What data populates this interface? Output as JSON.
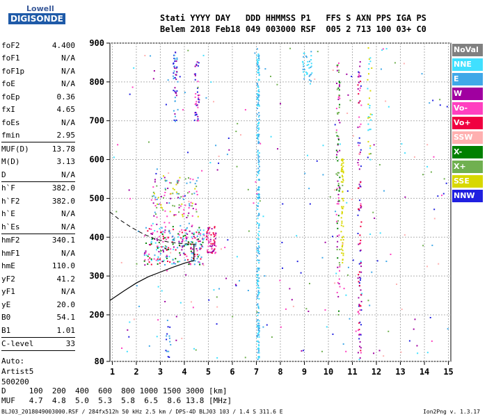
{
  "logo": {
    "top": "Lowell",
    "bottom": "DIGISONDE"
  },
  "header": {
    "line1": "Stati YYYY DAY   DDD HHMMSS P1   FFS S AXN PPS IGA PS",
    "line2": "Belem 2018 Feb18 049 003000 RSF  005 2 713 100 03+ C0"
  },
  "params": {
    "group1": [
      {
        "name": "foF2",
        "value": "4.400"
      },
      {
        "name": "foF1",
        "value": "N/A"
      },
      {
        "name": "foF1p",
        "value": "N/A"
      },
      {
        "name": "foE",
        "value": "N/A"
      },
      {
        "name": "foEp",
        "value": "0.36"
      },
      {
        "name": "fxI",
        "value": "4.65"
      },
      {
        "name": "foEs",
        "value": "N/A"
      },
      {
        "name": "fmin",
        "value": "2.95"
      }
    ],
    "group2": [
      {
        "name": "MUF(D)",
        "value": "13.78"
      },
      {
        "name": "M(D)",
        "value": "3.13"
      },
      {
        "name": "D",
        "value": "N/A"
      }
    ],
    "group3": [
      {
        "name": "h`F",
        "value": "382.0"
      },
      {
        "name": "h`F2",
        "value": "382.0"
      },
      {
        "name": "h`E",
        "value": "N/A"
      },
      {
        "name": "h`Es",
        "value": "N/A"
      }
    ],
    "group4": [
      {
        "name": "hmF2",
        "value": "340.1"
      },
      {
        "name": "hmF1",
        "value": "N/A"
      },
      {
        "name": "hmE",
        "value": "110.0"
      },
      {
        "name": "yF2",
        "value": "41.2"
      },
      {
        "name": "yF1",
        "value": "N/A"
      },
      {
        "name": "yE",
        "value": "20.0"
      },
      {
        "name": "B0",
        "value": "54.1"
      },
      {
        "name": "B1",
        "value": "1.01"
      }
    ],
    "clevel": {
      "name": "C-level",
      "value": "33"
    },
    "auto": [
      "Auto:",
      "Artist5",
      "500200"
    ]
  },
  "legend": [
    {
      "label": "NoVal",
      "color": "#808080"
    },
    {
      "label": "NNE",
      "color": "#40e0ff"
    },
    {
      "label": "E",
      "color": "#40a8e8"
    },
    {
      "label": "W",
      "color": "#a000a0"
    },
    {
      "label": "Vo-",
      "color": "#ff40c0"
    },
    {
      "label": "Vo+",
      "color": "#f00040"
    },
    {
      "label": "SSW",
      "color": "#ffb0b0"
    },
    {
      "label": "X-",
      "color": "#008000"
    },
    {
      "label": "X+",
      "color": "#70b050"
    },
    {
      "label": "SSE",
      "color": "#d8d800"
    },
    {
      "label": "NNW",
      "color": "#2020e0"
    }
  ],
  "dtable": {
    "line1": "D     100  200  400  600  800 1000 1500 3000 [km]",
    "line2": "MUF   4.7  4.8  5.0  5.3  5.8  6.5  8.6 13.8 [MHz]"
  },
  "footer": "BLJ03_2018049003000.RSF / 284fx512h 50 kHz 2.5 km / DPS-4D BLJ03 103 / 1.4 S 311.6 E",
  "version": "Ion2Png v. 1.3.17",
  "chart_data": {
    "type": "scatter",
    "title": "",
    "xlabel": "",
    "ylabel": "",
    "xlim": [
      0.9,
      15.1
    ],
    "ylim": [
      80,
      900
    ],
    "xticks": [
      1,
      2,
      3,
      4,
      5,
      6,
      7,
      8,
      9,
      10,
      11,
      12,
      13,
      14,
      15
    ],
    "yticks": [
      80,
      200,
      300,
      400,
      500,
      600,
      700,
      800,
      900
    ],
    "profile_solid": [
      [
        0.9,
        237
      ],
      [
        1.5,
        262
      ],
      [
        2.0,
        282
      ],
      [
        2.5,
        298
      ],
      [
        3.0,
        310
      ],
      [
        3.5,
        322
      ],
      [
        4.0,
        333
      ],
      [
        4.4,
        340
      ],
      [
        4.4,
        382
      ]
    ],
    "profile_dashed": [
      [
        0.9,
        465
      ],
      [
        1.3,
        445
      ],
      [
        1.8,
        425
      ],
      [
        2.3,
        408
      ],
      [
        2.8,
        395
      ],
      [
        3.3,
        388
      ],
      [
        3.8,
        384
      ],
      [
        4.3,
        382
      ],
      [
        4.6,
        382
      ]
    ],
    "clusters": [
      {
        "name": "F-trace blob",
        "x": [
          2.3,
          4.8
        ],
        "y": [
          330,
          430
        ],
        "colors": [
          "#f00040",
          "#ff40c0",
          "#a000a0",
          "#40a8e8",
          "#40e0ff",
          "#008000"
        ],
        "n": 260
      },
      {
        "name": "F-trace upper",
        "x": [
          2.6,
          4.6
        ],
        "y": [
          430,
          560
        ],
        "colors": [
          "#ff40c0",
          "#a000a0",
          "#40a8e8",
          "#d8d800",
          "#70b050"
        ],
        "n": 120
      },
      {
        "name": "F layer 5MHz",
        "x": [
          4.9,
          5.3
        ],
        "y": [
          360,
          430
        ],
        "colors": [
          "#f00040",
          "#ff40c0",
          "#a000a0"
        ],
        "n": 60
      },
      {
        "name": "oblique 3.6",
        "x": [
          3.5,
          3.7
        ],
        "y": [
          700,
          880
        ],
        "colors": [
          "#2020e0",
          "#a000a0",
          "#40a8e8"
        ],
        "n": 50
      },
      {
        "name": "oblique 4.5",
        "x": [
          4.4,
          4.6
        ],
        "y": [
          700,
          860
        ],
        "colors": [
          "#2020e0",
          "#a000a0",
          "#ff40c0"
        ],
        "n": 40
      },
      {
        "name": "column 7.05",
        "x": [
          7.0,
          7.1
        ],
        "y": [
          80,
          880
        ],
        "colors": [
          "#40a8e8",
          "#40e0ff"
        ],
        "n": 260
      },
      {
        "name": "column 10.4",
        "x": [
          10.3,
          10.45
        ],
        "y": [
          200,
          860
        ],
        "colors": [
          "#a000a0",
          "#008000",
          "#ff40c0",
          "#70b050"
        ],
        "n": 90
      },
      {
        "name": "SSE column 10.55",
        "x": [
          10.5,
          10.6
        ],
        "y": [
          330,
          610
        ],
        "colors": [
          "#d8d800"
        ],
        "n": 60
      },
      {
        "name": "column 11.3",
        "x": [
          11.2,
          11.35
        ],
        "y": [
          80,
          860
        ],
        "colors": [
          "#a000a0",
          "#2020e0",
          "#ff40c0",
          "#f00040"
        ],
        "n": 110
      },
      {
        "name": "column 11.7",
        "x": [
          11.6,
          11.8
        ],
        "y": [
          600,
          900
        ],
        "colors": [
          "#40e0ff",
          "#d8d800"
        ],
        "n": 30
      },
      {
        "name": "upper 9",
        "x": [
          8.9,
          9.3
        ],
        "y": [
          800,
          880
        ],
        "colors": [
          "#40a8e8",
          "#40e0ff"
        ],
        "n": 35
      },
      {
        "name": "background",
        "x": [
          1.0,
          15.0
        ],
        "y": [
          85,
          890
        ],
        "colors": [
          "#40a8e8",
          "#40e0ff",
          "#a000a0",
          "#ff40c0",
          "#ffb0b0",
          "#2020e0",
          "#70b050"
        ],
        "n": 260
      },
      {
        "name": "low 3.3",
        "x": [
          3.2,
          3.4
        ],
        "y": [
          85,
          200
        ],
        "colors": [
          "#2020e0",
          "#40a8e8"
        ],
        "n": 15
      }
    ]
  }
}
